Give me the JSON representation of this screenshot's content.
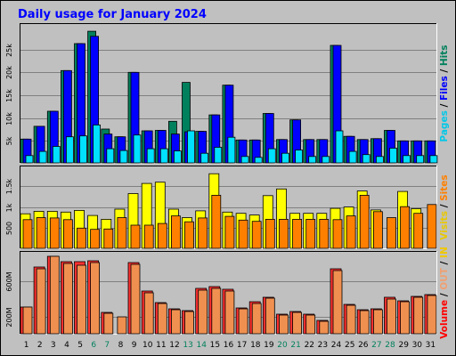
{
  "chart_data": {
    "title": "Daily usage for January 2024",
    "days": [
      "1",
      "2",
      "3",
      "4",
      "5",
      "6",
      "7",
      "8",
      "9",
      "10",
      "11",
      "12",
      "13",
      "14",
      "15",
      "16",
      "17",
      "18",
      "19",
      "20",
      "21",
      "22",
      "23",
      "24",
      "25",
      "26",
      "27",
      "28",
      "29",
      "30",
      "31"
    ],
    "weekend_days": [
      "6",
      "7",
      "13",
      "14",
      "20",
      "21",
      "27",
      "28"
    ],
    "panels": [
      {
        "type": "bar",
        "ylim": [
          0,
          3000
        ],
        "yticks": [
          {
            "value": 500,
            "label": "5k"
          },
          {
            "value": 1000,
            "label": "10k"
          },
          {
            "value": 1500,
            "label": "15k"
          },
          {
            "value": 2000,
            "label": "20k"
          },
          {
            "value": 2500,
            "label": "25k"
          }
        ],
        "series": [
          {
            "color": "#00805c",
            "values": [
              540,
              820,
              1150,
              2040,
              2630,
              2900,
              760,
              590,
              2000,
              720,
              730,
              930,
              1780,
              710,
              1070,
              1720,
              520,
              520,
              1100,
              530,
              960,
              530,
              530,
              2590,
              600,
              530,
              550,
              730,
              500,
              500,
              500
            ]
          },
          {
            "color": "#0000ff",
            "values": [
              540,
              820,
              1150,
              2040,
              2630,
              2790,
              650,
              590,
              2000,
              720,
              730,
              650,
              700,
              710,
              1070,
              1720,
              520,
              520,
              1100,
              530,
              960,
              530,
              530,
              2590,
              600,
              530,
              550,
              730,
              500,
              500,
              500
            ]
          },
          {
            "color": "#00e0ff",
            "values": [
              180,
              270,
              380,
              590,
              610,
              850,
              330,
              290,
              630,
              330,
              330,
              280,
              720,
              230,
              360,
              580,
              160,
              140,
              330,
              230,
              300,
              160,
              160,
              720,
              270,
              200,
              160,
              340,
              180,
              180,
              180
            ]
          }
        ],
        "legend": [
          {
            "text": "Pages",
            "color": "#00c8e8"
          },
          {
            "text": " / ",
            "color": "#000000"
          },
          {
            "text": "Files",
            "color": "#0000ff"
          },
          {
            "text": " / ",
            "color": "#000000"
          },
          {
            "text": "Hits",
            "color": "#00805c"
          }
        ]
      },
      {
        "type": "bar",
        "ylim": [
          0,
          1900
        ],
        "yticks": [
          {
            "value": 500,
            "label": "500"
          },
          {
            "value": 1000,
            "label": "1k"
          },
          {
            "value": 1500,
            "label": "1.5k"
          }
        ],
        "series": [
          {
            "color": "#ffff00",
            "values": [
              840,
              900,
              900,
              880,
              920,
              800,
              710,
              950,
              1320,
              1560,
              1590,
              950,
              750,
              910,
              1790,
              880,
              850,
              810,
              1270,
              1430,
              850,
              850,
              850,
              970,
              1000,
              1380,
              930,
              0,
              1370,
              960,
              0
            ]
          },
          {
            "color": "#ff8000",
            "values": [
              700,
              750,
              740,
              700,
              500,
              470,
              480,
              750,
              570,
              570,
              610,
              790,
              650,
              740,
              1280,
              780,
              690,
              660,
              710,
              710,
              710,
              710,
              710,
              700,
              790,
              1280,
              890,
              750,
              1010,
              850,
              1060
            ]
          }
        ],
        "legend": [
          {
            "text": "Visits",
            "color": "#e8c800"
          },
          {
            "text": " / ",
            "color": "#000000"
          },
          {
            "text": "Sites",
            "color": "#ff8000"
          }
        ]
      },
      {
        "type": "bar",
        "ylim": [
          0,
          900
        ],
        "yticks": [
          {
            "value": 200,
            "label": "200M"
          },
          {
            "value": 600,
            "label": "600M"
          }
        ],
        "series": [
          {
            "color": "#ff3030",
            "values": [
              310,
              760,
              880,
              820,
              820,
              830,
              250,
              0,
              810,
              490,
              360,
              290,
              270,
              520,
              540,
              510,
              300,
              370,
              420,
              230,
              260,
              230,
              160,
              740,
              340,
              280,
              290,
              420,
              380,
              430,
              450
            ]
          },
          {
            "color": "#f09050",
            "values": [
              310,
              740,
              880,
              800,
              780,
              810,
              240,
              200,
              790,
              470,
              350,
              280,
              260,
              500,
              520,
              490,
              290,
              350,
              410,
              220,
              250,
              220,
              150,
              720,
              330,
              270,
              280,
              400,
              370,
              420,
              440
            ]
          }
        ],
        "legend": [
          {
            "text": "Volume",
            "color": "#ff0000"
          },
          {
            "text": " / ",
            "color": "#000000"
          },
          {
            "text": "OUT",
            "color": "#f0a070"
          },
          {
            "text": " / ",
            "color": "#000000"
          },
          {
            "text": "IN",
            "color": "#f0c800"
          }
        ]
      }
    ]
  }
}
